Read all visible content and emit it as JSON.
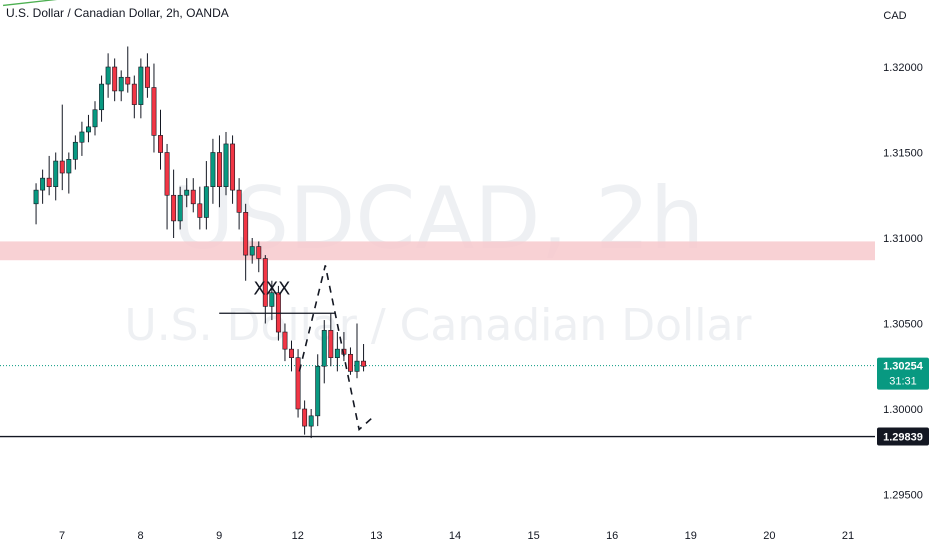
{
  "header": {
    "title": "U.S. Dollar / Canadian Dollar, 2h, OANDA"
  },
  "watermark": {
    "symbol": "USDCAD, 2h",
    "name": "U.S. Dollar / Canadian Dollar"
  },
  "chart_data": {
    "type": "candlestick",
    "currency": "CAD",
    "y_ticks": [
      1.32,
      1.315,
      1.31,
      1.305,
      1.3,
      1.295
    ],
    "y_tick_labels": [
      "1.32000",
      "1.31500",
      "1.31000",
      "1.30500",
      "1.30000",
      "1.29500"
    ],
    "ylim": [
      1.2919,
      1.3246
    ],
    "x_day_ticks": [
      {
        "label": "7",
        "t": 7
      },
      {
        "label": "8",
        "t": 8
      },
      {
        "label": "9",
        "t": 9
      },
      {
        "label": "12",
        "t": 10
      },
      {
        "label": "13",
        "t": 11
      },
      {
        "label": "14",
        "t": 12
      },
      {
        "label": "15",
        "t": 13
      },
      {
        "label": "16",
        "t": 14
      },
      {
        "label": "19",
        "t": 15
      },
      {
        "label": "20",
        "t": 16
      },
      {
        "label": "21",
        "t": 17
      }
    ],
    "bars_per_day": 12,
    "first_bar_t": 6.67,
    "current_price": {
      "label": "1.30254",
      "value": 1.30254,
      "countdown": "31:31",
      "color": "#089981"
    },
    "support_line": {
      "label": "1.29839",
      "value": 1.29839
    },
    "resistance_zone": {
      "from": 1.3087,
      "to": 1.3098,
      "color": "#f7c9cd"
    },
    "trendline": {
      "from": {
        "t": 6.25,
        "price": 1.3236
      },
      "to": {
        "t": 14.95,
        "price": 1.3281
      },
      "color": "#4caf50"
    },
    "xxx_line": {
      "from_t": 9.0,
      "to_t": 10.47,
      "price": 1.3056
    },
    "annotation": {
      "text": "XXX",
      "t": 9.67,
      "price": 1.3067
    },
    "projection": [
      {
        "t": 10.02,
        "price": 1.3022
      },
      {
        "t": 10.35,
        "price": 1.3084
      },
      {
        "t": 10.78,
        "price": 1.2988
      },
      {
        "t": 10.95,
        "price": 1.2995
      }
    ],
    "candles": [
      [
        1.312,
        1.3132,
        1.3108,
        1.3128
      ],
      [
        1.3128,
        1.314,
        1.312,
        1.3135
      ],
      [
        1.3135,
        1.3148,
        1.3125,
        1.313
      ],
      [
        1.313,
        1.315,
        1.3122,
        1.3145
      ],
      [
        1.3145,
        1.3178,
        1.3128,
        1.3138
      ],
      [
        1.3138,
        1.315,
        1.3126,
        1.3146
      ],
      [
        1.3146,
        1.316,
        1.314,
        1.3156
      ],
      [
        1.3156,
        1.3168,
        1.3148,
        1.3162
      ],
      [
        1.3162,
        1.3172,
        1.3156,
        1.3165
      ],
      [
        1.3165,
        1.318,
        1.316,
        1.3175
      ],
      [
        1.3175,
        1.3195,
        1.3168,
        1.319
      ],
      [
        1.319,
        1.3208,
        1.3182,
        1.32
      ],
      [
        1.32,
        1.3205,
        1.318,
        1.3186
      ],
      [
        1.3186,
        1.3198,
        1.318,
        1.3194
      ],
      [
        1.3194,
        1.3212,
        1.3185,
        1.319
      ],
      [
        1.319,
        1.3195,
        1.317,
        1.3178
      ],
      [
        1.3178,
        1.3205,
        1.317,
        1.32
      ],
      [
        1.32,
        1.3208,
        1.3182,
        1.3188
      ],
      [
        1.3188,
        1.3202,
        1.315,
        1.316
      ],
      [
        1.316,
        1.3175,
        1.314,
        1.315
      ],
      [
        1.315,
        1.3155,
        1.3105,
        1.3125
      ],
      [
        1.3125,
        1.314,
        1.31,
        1.311
      ],
      [
        1.311,
        1.313,
        1.3105,
        1.3125
      ],
      [
        1.3125,
        1.3135,
        1.3118,
        1.3128
      ],
      [
        1.3128,
        1.3135,
        1.3115,
        1.312
      ],
      [
        1.312,
        1.313,
        1.3105,
        1.3112
      ],
      [
        1.3112,
        1.3145,
        1.3105,
        1.313
      ],
      [
        1.313,
        1.3158,
        1.312,
        1.315
      ],
      [
        1.315,
        1.316,
        1.3118,
        1.313
      ],
      [
        1.313,
        1.3162,
        1.3125,
        1.3155
      ],
      [
        1.3155,
        1.316,
        1.312,
        1.3128
      ],
      [
        1.3128,
        1.3135,
        1.3105,
        1.3115
      ],
      [
        1.3115,
        1.312,
        1.3075,
        1.309
      ],
      [
        1.309,
        1.31,
        1.3085,
        1.3095
      ],
      [
        1.3095,
        1.3098,
        1.308,
        1.3088
      ],
      [
        1.3088,
        1.309,
        1.305,
        1.306
      ],
      [
        1.306,
        1.3075,
        1.3052,
        1.3068
      ],
      [
        1.3068,
        1.3072,
        1.304,
        1.3045
      ],
      [
        1.3045,
        1.305,
        1.3028,
        1.3035
      ],
      [
        1.3035,
        1.304,
        1.3022,
        1.303
      ],
      [
        1.303,
        1.3035,
        1.2995,
        1.3
      ],
      [
        1.3,
        1.3005,
        1.2985,
        1.299
      ],
      [
        1.299,
        1.3,
        1.2983,
        1.2996
      ],
      [
        1.2996,
        1.3032,
        1.299,
        1.3025
      ],
      [
        1.3025,
        1.3052,
        1.3015,
        1.3046
      ],
      [
        1.3046,
        1.3056,
        1.3025,
        1.303
      ],
      [
        1.303,
        1.3045,
        1.3022,
        1.3035
      ],
      [
        1.3035,
        1.3045,
        1.3028,
        1.3032
      ],
      [
        1.3032,
        1.3036,
        1.302,
        1.3022
      ],
      [
        1.3022,
        1.305,
        1.3018,
        1.3028
      ],
      [
        1.3028,
        1.3038,
        1.3022,
        1.3025
      ]
    ]
  }
}
